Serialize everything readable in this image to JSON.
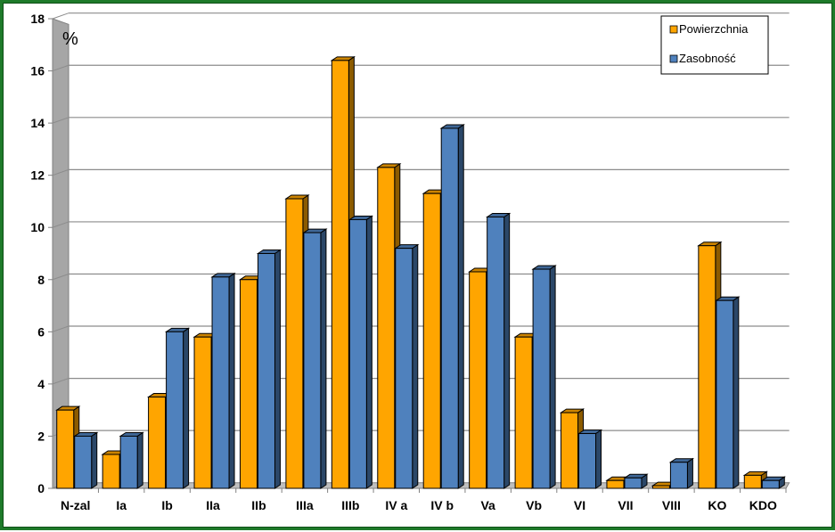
{
  "chart_data": {
    "type": "bar",
    "ylabel": "%",
    "ylim": [
      0,
      18
    ],
    "yticks": [
      0,
      2,
      4,
      6,
      8,
      10,
      12,
      14,
      16,
      18
    ],
    "grid": true,
    "legend_position": "top-right",
    "categories": [
      "N-zal",
      "Ia",
      "Ib",
      "IIa",
      "IIb",
      "IIIa",
      "IIIb",
      "IV a",
      "IV b",
      "Va",
      "Vb",
      "VI",
      "VII",
      "VIII",
      "KO",
      "KDO"
    ],
    "series": [
      {
        "name": "Powierzchnia",
        "color": "#ffa500",
        "values": [
          3.0,
          1.3,
          3.5,
          5.8,
          8.0,
          11.1,
          16.4,
          12.3,
          11.3,
          8.3,
          5.8,
          2.9,
          0.3,
          0.1,
          9.3,
          0.5
        ]
      },
      {
        "name": "Zasobność",
        "color": "#4f81bd",
        "values": [
          2.0,
          2.0,
          6.0,
          8.1,
          9.0,
          9.8,
          10.3,
          9.2,
          13.8,
          10.4,
          8.4,
          2.1,
          0.4,
          1.0,
          7.2,
          0.3
        ]
      }
    ]
  }
}
